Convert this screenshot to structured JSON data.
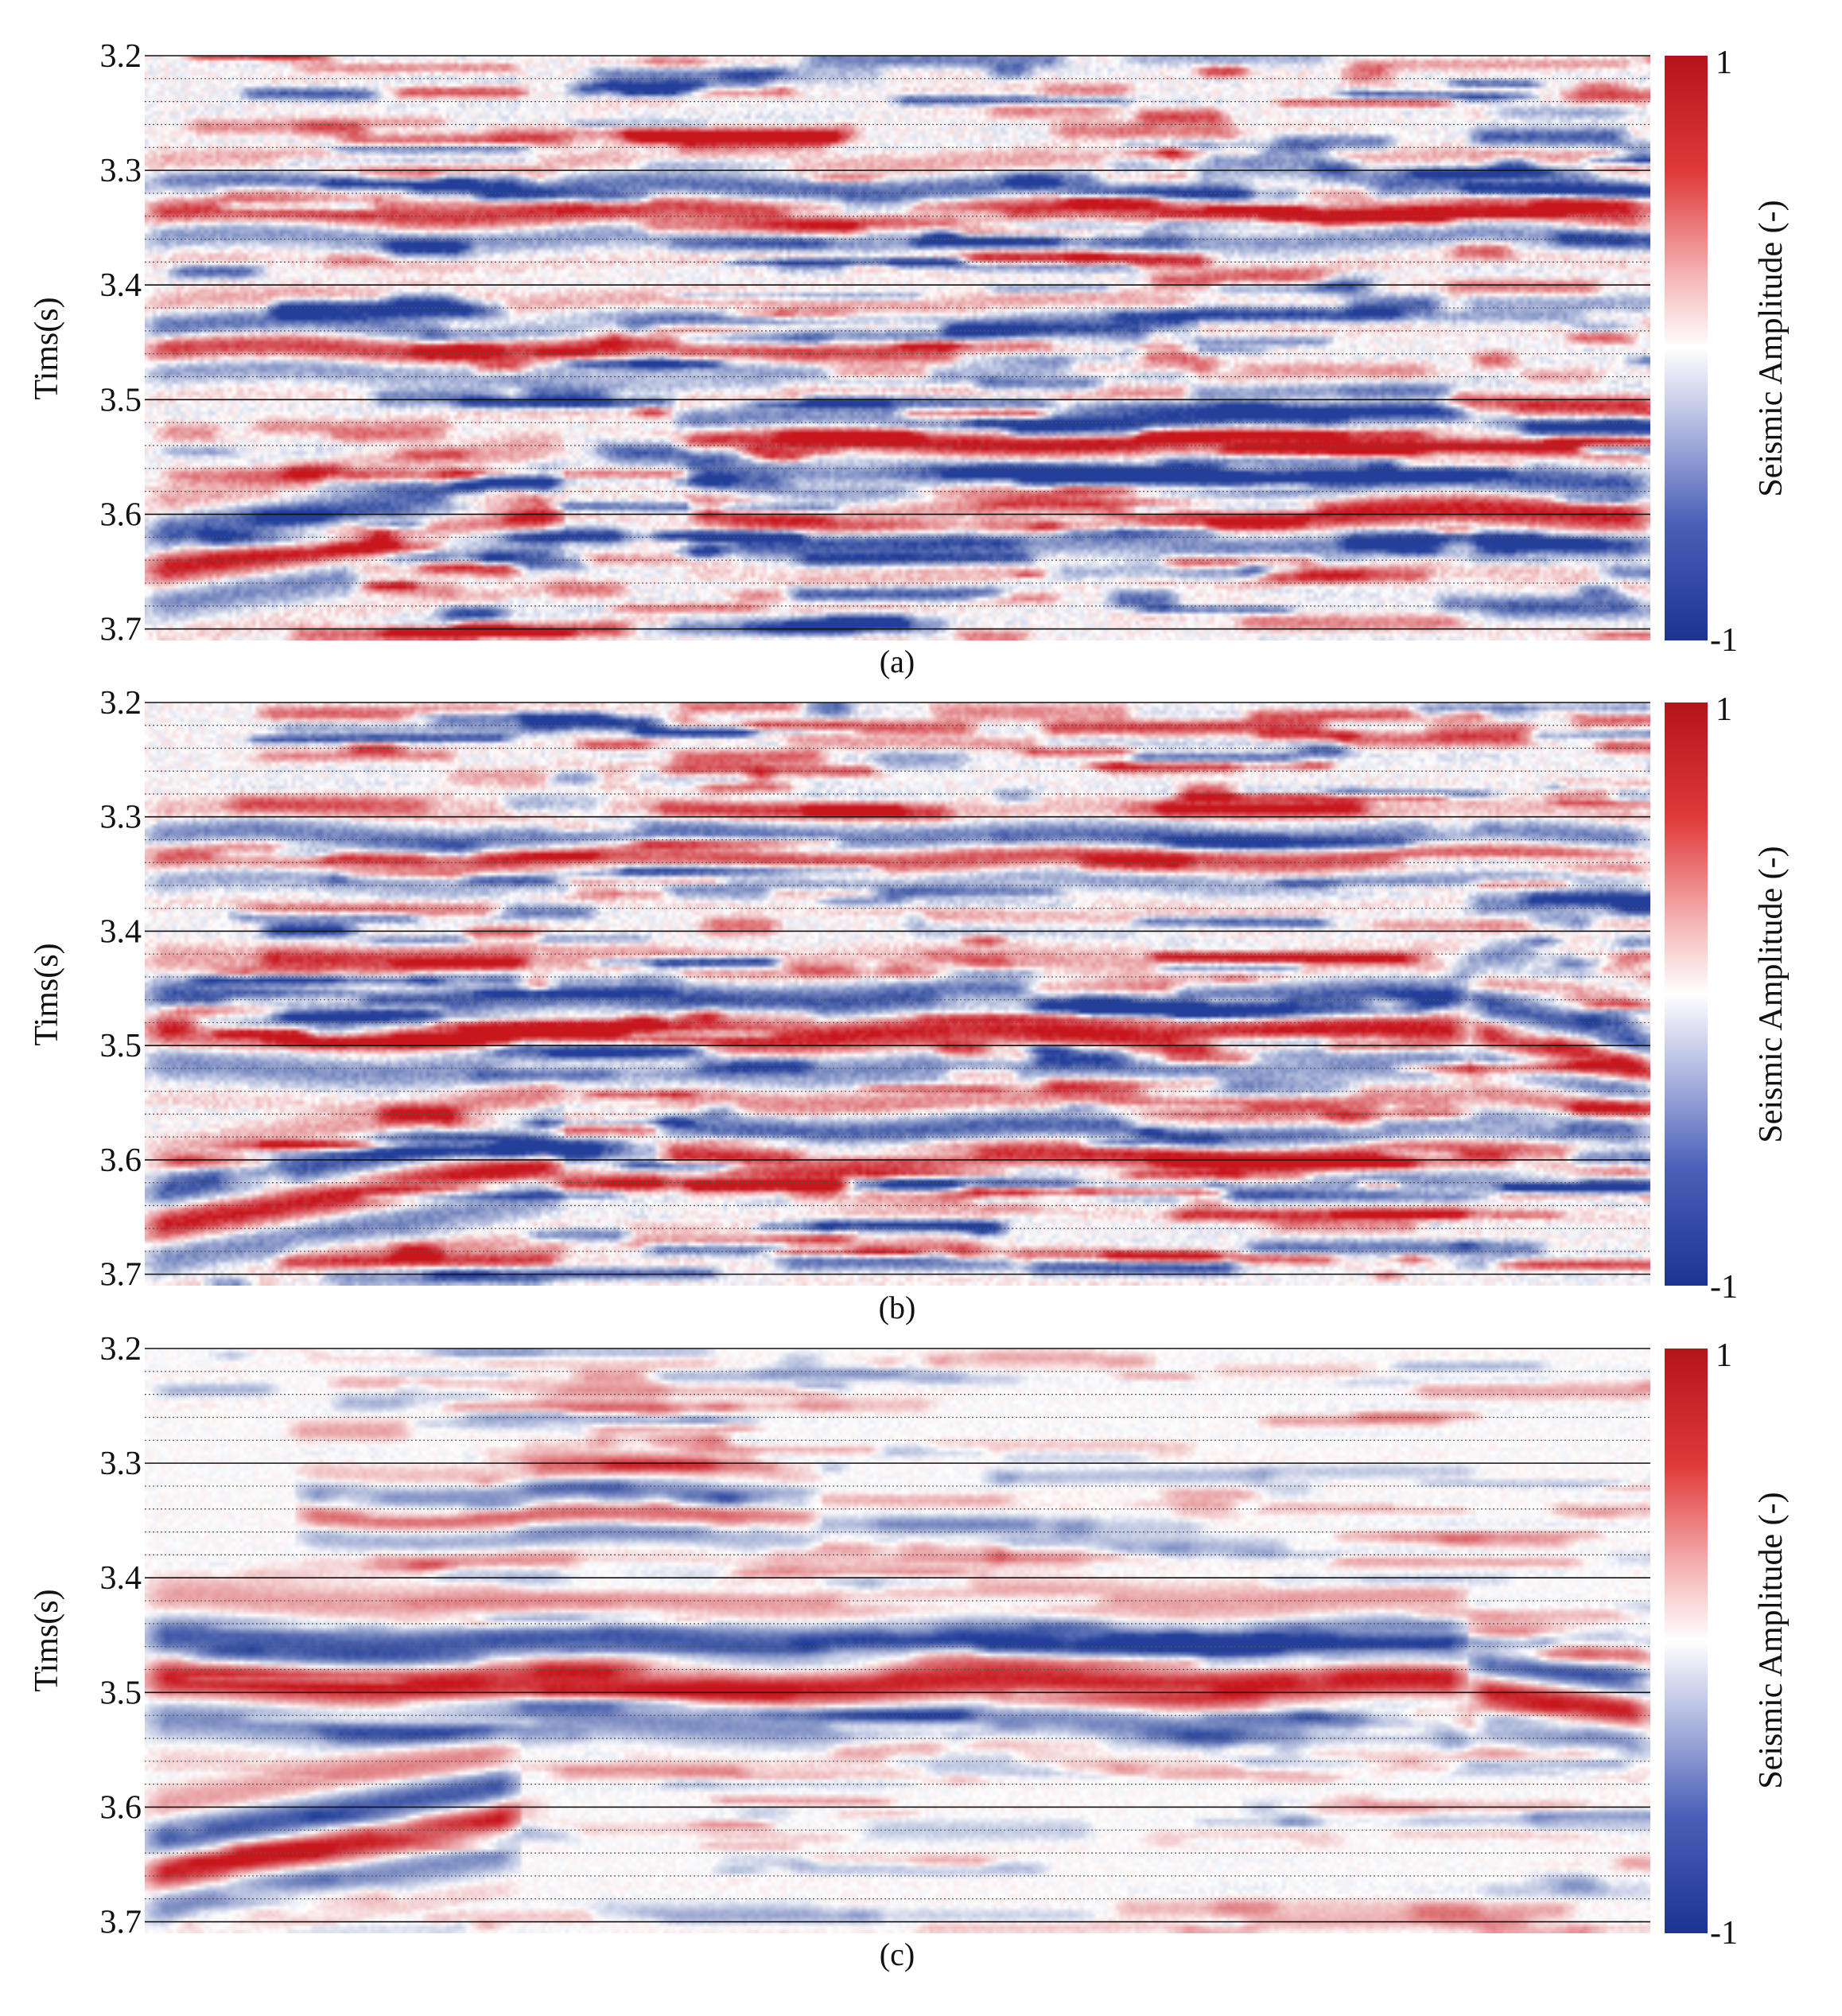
{
  "colors": {
    "positive": "#c8161d",
    "negative": "#233f9a",
    "zero": "#ffffff",
    "grid_major": "#111111",
    "grid_minor": "#555555"
  },
  "chart_data": [
    {
      "type": "heatmap",
      "panel_label": "(a)",
      "ylabel": "Tims(s)",
      "yticks": [
        "3.2",
        "3.3",
        "3.4",
        "3.5",
        "3.6",
        "3.7"
      ],
      "ylim": [
        3.2,
        3.71
      ],
      "y_inverted": true,
      "colorbar": {
        "label": "Seismic Amplitude (-)",
        "max_label": "1",
        "min_label": "-1",
        "range": [
          -1,
          1
        ]
      },
      "grid": {
        "major": "solid",
        "minor": "dotted"
      },
      "horizons": [
        {
          "kind": "line",
          "t0": 3.64,
          "t1": 3.59,
          "xStart": 0.0,
          "xEnd": 0.28,
          "amp": 1.0,
          "width": 0.022
        },
        {
          "kind": "flat",
          "t": 3.59,
          "xStart": 0.36,
          "xEnd": 1.0,
          "amp": 1.0,
          "width": 0.02
        },
        {
          "kind": "flat",
          "t": 3.33,
          "xStart": 0.0,
          "xEnd": 1.0,
          "amp": 0.85,
          "width": 0.016
        },
        {
          "kind": "flat",
          "t": 3.45,
          "xStart": 0.0,
          "xEnd": 0.7,
          "amp": 0.8,
          "width": 0.015
        },
        {
          "kind": "flat",
          "t": 3.53,
          "xStart": 0.35,
          "xEnd": 0.8,
          "amp": 0.7,
          "width": 0.015
        }
      ],
      "noise_level": 0.85,
      "seed": 11
    },
    {
      "type": "heatmap",
      "panel_label": "(b)",
      "ylabel": "Tims(s)",
      "yticks": [
        "3.2",
        "3.3",
        "3.4",
        "3.5",
        "3.6",
        "3.7"
      ],
      "ylim": [
        3.2,
        3.71
      ],
      "y_inverted": true,
      "colorbar": {
        "label": "Seismic Amplitude (-)",
        "max_label": "1",
        "min_label": "-1",
        "range": [
          -1,
          1
        ]
      },
      "grid": {
        "major": "solid",
        "minor": "dotted"
      },
      "horizons": [
        {
          "kind": "flat",
          "t": 3.48,
          "xStart": 0.0,
          "xEnd": 0.88,
          "amp": 1.0,
          "width": 0.022
        },
        {
          "kind": "line",
          "t0": 3.48,
          "t1": 3.51,
          "xStart": 0.88,
          "xEnd": 1.0,
          "amp": 1.0,
          "width": 0.018
        },
        {
          "kind": "line",
          "t0": 3.65,
          "t1": 3.59,
          "xStart": 0.0,
          "xEnd": 0.28,
          "amp": 1.0,
          "width": 0.022
        },
        {
          "kind": "flat",
          "t": 3.59,
          "xStart": 0.34,
          "xEnd": 1.0,
          "amp": 0.9,
          "width": 0.018
        },
        {
          "kind": "flat",
          "t": 3.33,
          "xStart": 0.0,
          "xEnd": 1.0,
          "amp": 0.7,
          "width": 0.015
        }
      ],
      "noise_level": 0.8,
      "seed": 23
    },
    {
      "type": "heatmap",
      "panel_label": "(c)",
      "ylabel": "Tims(s)",
      "yticks": [
        "3.2",
        "3.3",
        "3.4",
        "3.5",
        "3.6",
        "3.7"
      ],
      "ylim": [
        3.2,
        3.71
      ],
      "y_inverted": true,
      "colorbar": {
        "label": "Seismic Amplitude (-)",
        "max_label": "1",
        "min_label": "-1",
        "range": [
          -1,
          1
        ]
      },
      "grid": {
        "major": "solid",
        "minor": "dotted"
      },
      "horizons": [
        {
          "kind": "flat",
          "t": 3.48,
          "xStart": 0.0,
          "xEnd": 0.88,
          "amp": 1.0,
          "width": 0.026
        },
        {
          "kind": "line",
          "t0": 3.49,
          "t1": 3.51,
          "xStart": 0.88,
          "xEnd": 1.0,
          "amp": 1.0,
          "width": 0.02
        },
        {
          "kind": "line",
          "t0": 3.65,
          "t1": 3.6,
          "xStart": 0.0,
          "xEnd": 0.25,
          "amp": 1.0,
          "width": 0.022
        },
        {
          "kind": "flat",
          "t": 3.34,
          "xStart": 0.1,
          "xEnd": 0.45,
          "amp": 0.6,
          "width": 0.014
        }
      ],
      "noise_level": 0.35,
      "seed": 37
    }
  ]
}
